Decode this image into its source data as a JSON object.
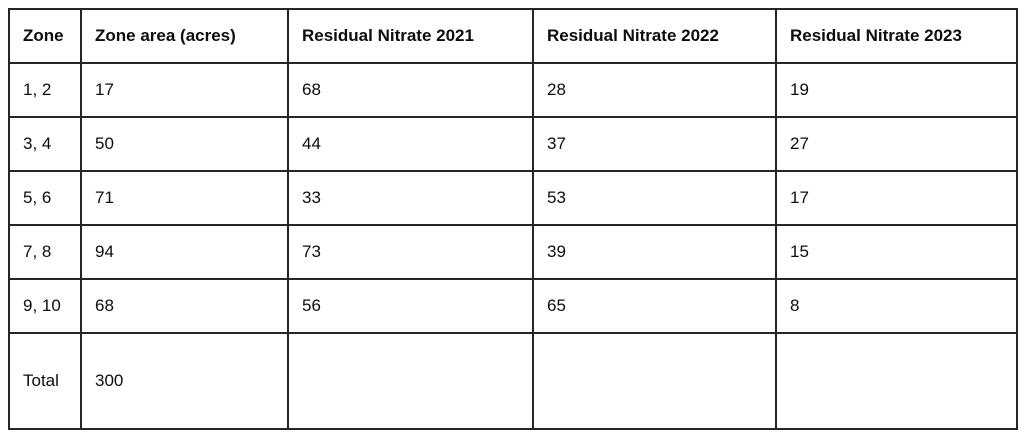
{
  "table": {
    "headers": [
      "Zone",
      "Zone area (acres)",
      "Residual Nitrate 2021",
      "Residual Nitrate 2022",
      "Residual Nitrate 2023"
    ],
    "rows": [
      {
        "cells": [
          "1, 2",
          "17",
          "68",
          "28",
          "19"
        ]
      },
      {
        "cells": [
          "3, 4",
          "50",
          "44",
          "37",
          "27"
        ]
      },
      {
        "cells": [
          "5, 6",
          "71",
          "33",
          "53",
          "17"
        ]
      },
      {
        "cells": [
          "7, 8",
          "94",
          "73",
          "39",
          "15"
        ]
      },
      {
        "cells": [
          "9, 10",
          "68",
          "56",
          "65",
          "8"
        ]
      },
      {
        "cells": [
          "Total",
          "300",
          "",
          "",
          ""
        ]
      }
    ],
    "colors": {
      "border": "#262626",
      "text": "#0d0d0d",
      "background": "#ffffff"
    }
  }
}
